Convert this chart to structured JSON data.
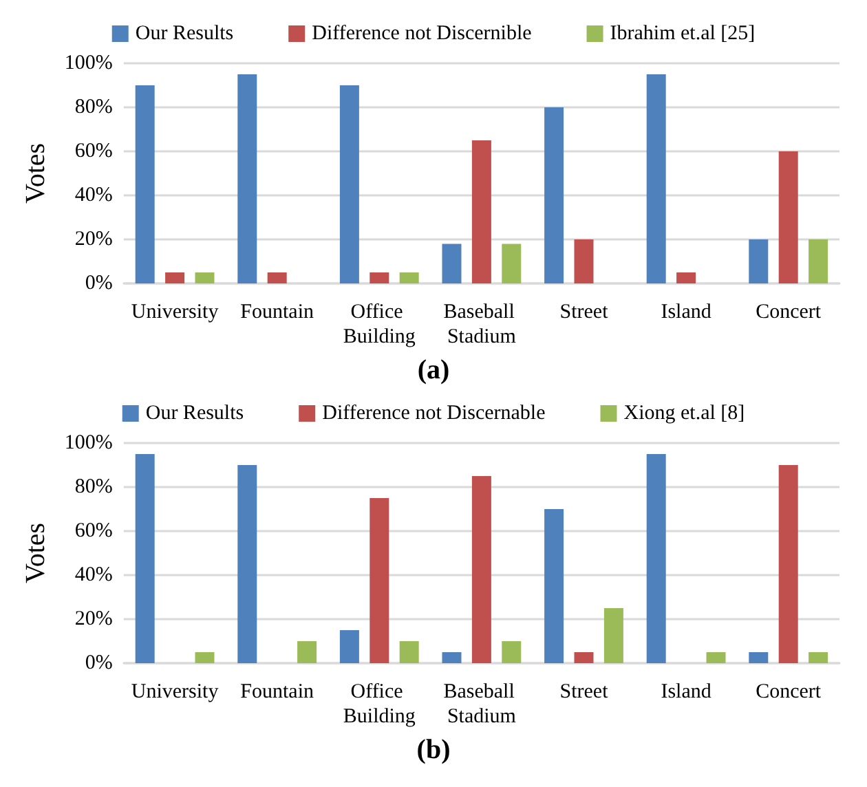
{
  "chart_data": [
    {
      "type": "bar",
      "title": "(a)",
      "ylabel": "Votes",
      "categories": [
        "University",
        "Fountain",
        "Office Building",
        "Baseball Stadium",
        "Street",
        "Island",
        "Concert"
      ],
      "series": [
        {
          "name": "Our Results",
          "color": "#4f81bd",
          "values": [
            90,
            95,
            90,
            18,
            80,
            95,
            20
          ]
        },
        {
          "name": "Difference not Discernible",
          "color": "#c0504d",
          "values": [
            5,
            5,
            5,
            65,
            20,
            5,
            60
          ]
        },
        {
          "name": "Ibrahim et.al [25]",
          "color": "#9bbb59",
          "values": [
            5,
            0,
            5,
            18,
            0,
            0,
            20
          ]
        }
      ],
      "ylim": [
        0,
        100
      ],
      "yticks": [
        {
          "value": 0,
          "label": "0%"
        },
        {
          "value": 20,
          "label": "20%"
        },
        {
          "value": 40,
          "label": "40%"
        },
        {
          "value": 60,
          "label": "60%"
        },
        {
          "value": 80,
          "label": "80%"
        },
        {
          "value": 100,
          "label": "100%"
        }
      ],
      "grid": "y",
      "legend": "top"
    },
    {
      "type": "bar",
      "title": "(b)",
      "ylabel": "Votes",
      "categories": [
        "University",
        "Fountain",
        "Office Building",
        "Baseball Stadium",
        "Street",
        "Island",
        "Concert"
      ],
      "series": [
        {
          "name": "Our Results",
          "color": "#4f81bd",
          "values": [
            95,
            90,
            15,
            5,
            70,
            95,
            5
          ]
        },
        {
          "name": "Difference not Discernable",
          "color": "#c0504d",
          "values": [
            0,
            0,
            75,
            85,
            5,
            0,
            90
          ]
        },
        {
          "name": "Xiong et.al [8]",
          "color": "#9bbb59",
          "values": [
            5,
            10,
            10,
            10,
            25,
            5,
            5
          ]
        }
      ],
      "ylim": [
        0,
        100
      ],
      "yticks": [
        {
          "value": 0,
          "label": "0%"
        },
        {
          "value": 20,
          "label": "20%"
        },
        {
          "value": 40,
          "label": "40%"
        },
        {
          "value": 60,
          "label": "60%"
        },
        {
          "value": 80,
          "label": "80%"
        },
        {
          "value": 100,
          "label": "100%"
        }
      ],
      "grid": "y",
      "legend": "top"
    }
  ]
}
